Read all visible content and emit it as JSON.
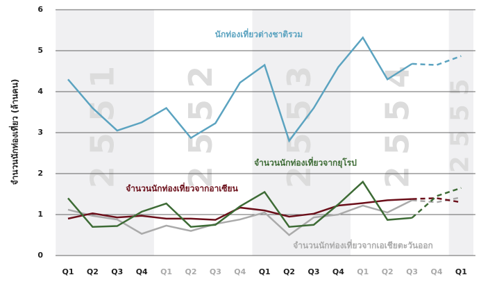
{
  "chart_data": {
    "type": "line",
    "y_label": "จำนวนนักท่องเที่ยว (ล้านคน)",
    "periods": [
      {
        "label": "2551",
        "shaded": true,
        "categories": [
          "Q1",
          "Q2",
          "Q3",
          "Q4"
        ]
      },
      {
        "label": "2552",
        "shaded": false,
        "categories": [
          "Q1",
          "Q2",
          "Q3",
          "Q4"
        ]
      },
      {
        "label": "2553",
        "shaded": true,
        "categories": [
          "Q1",
          "Q2",
          "Q3",
          "Q4"
        ]
      },
      {
        "label": "2554",
        "shaded": false,
        "categories": [
          "Q1",
          "Q2",
          "Q3",
          "Q4"
        ]
      },
      {
        "label": "2555",
        "shaded": true,
        "categories": [
          "Q1"
        ]
      }
    ],
    "ylim": [
      0,
      6
    ],
    "yticks": [
      0,
      1,
      2,
      3,
      4,
      5,
      6
    ],
    "grid": true,
    "series": [
      {
        "name": "นักท่องเที่ยวต่างชาติรวม",
        "color": "#5ba3c0",
        "dash_from": 14,
        "values": [
          4.3,
          3.6,
          3.05,
          3.25,
          3.6,
          2.87,
          3.23,
          4.22,
          4.65,
          2.8,
          3.6,
          4.6,
          5.32,
          4.3,
          4.68,
          4.65,
          4.87
        ]
      },
      {
        "name": "จำนวนนักท่องเที่ยวจากยุโรป",
        "color": "#3d6b35",
        "dash_from": 14,
        "values": [
          1.4,
          0.7,
          0.72,
          1.07,
          1.27,
          0.7,
          0.75,
          1.2,
          1.55,
          0.7,
          0.75,
          1.25,
          1.8,
          0.87,
          0.92,
          1.45,
          1.65
        ]
      },
      {
        "name": "จำนวนนักท่องเที่ยวจากอาเซียน",
        "color": "#6b0f1a",
        "dash_from": 14,
        "values": [
          0.9,
          1.03,
          0.93,
          0.97,
          0.9,
          0.9,
          0.87,
          1.17,
          1.1,
          0.95,
          1.02,
          1.22,
          1.28,
          1.35,
          1.38,
          1.4,
          1.3
        ]
      },
      {
        "name": "จำนวนนักท่องเที่ยวจากเอเชียตะวันออก",
        "color": "#aaaaaa",
        "dash_from": 14,
        "values": [
          1.12,
          0.97,
          0.88,
          0.53,
          0.73,
          0.6,
          0.77,
          0.88,
          1.05,
          0.5,
          0.93,
          1.0,
          1.22,
          1.05,
          1.35,
          1.3,
          1.42
        ]
      }
    ]
  }
}
